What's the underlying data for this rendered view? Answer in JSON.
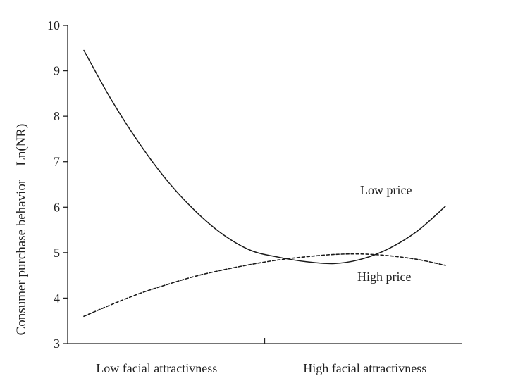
{
  "chart_data": {
    "type": "line",
    "title": "",
    "xlabel": "",
    "ylabel": "Consumer purchase behavior    Ln(NR)",
    "ylim": [
      3,
      10
    ],
    "y_ticks": [
      "3",
      "4",
      "5",
      "6",
      "7",
      "8",
      "9",
      "10"
    ],
    "x_ticks": [
      "Low facial attractivness",
      "High facial attractivness"
    ],
    "x_domain": [
      0,
      1
    ],
    "grid": false,
    "legend": "none",
    "series": [
      {
        "name": "Low price",
        "line_style": "solid",
        "color": "#1a1a1a",
        "x": [
          0.0,
          0.0769,
          0.1538,
          0.2308,
          0.3077,
          0.3846,
          0.4615,
          0.5385,
          0.6154,
          0.6923,
          0.7692,
          0.8462,
          0.9231,
          1.0
        ],
        "y": [
          9.45,
          8.35,
          7.4,
          6.58,
          5.92,
          5.4,
          5.05,
          4.9,
          4.8,
          4.76,
          4.86,
          5.1,
          5.48,
          6.02
        ]
      },
      {
        "name": "High price",
        "line_style": "dashed",
        "color": "#1a1a1a",
        "x": [
          0.0,
          0.0769,
          0.1538,
          0.2308,
          0.3077,
          0.3846,
          0.4615,
          0.5385,
          0.6154,
          0.6923,
          0.7692,
          0.8462,
          0.9231,
          1.0
        ],
        "y": [
          3.6,
          3.86,
          4.1,
          4.3,
          4.48,
          4.62,
          4.74,
          4.84,
          4.91,
          4.96,
          4.97,
          4.93,
          4.85,
          4.72
        ]
      }
    ]
  }
}
